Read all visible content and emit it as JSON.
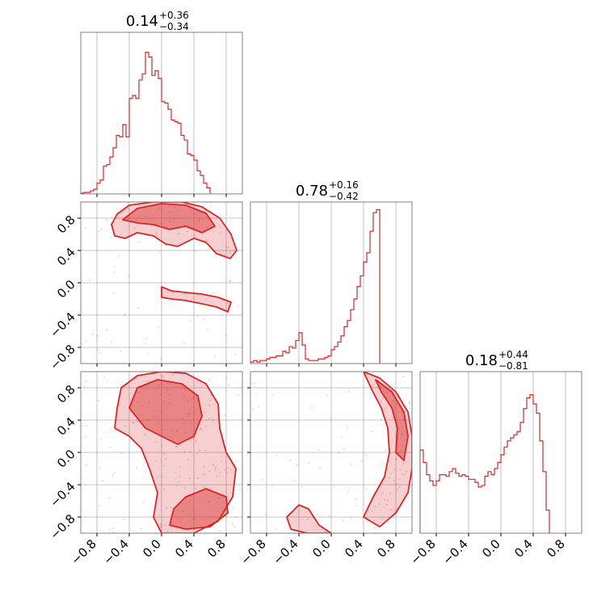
{
  "chart_data": {
    "type": "corner",
    "color": "#d62728",
    "grid": true,
    "axis_range": [
      -1.0,
      1.0
    ],
    "tick_labels": [
      "−0.8",
      "−0.4",
      "0.0",
      "0.4",
      "0.8"
    ],
    "tick_values": [
      -0.8,
      -0.4,
      0.0,
      0.4,
      0.8
    ],
    "titles": [
      {
        "median": "0.14",
        "upper": "+0.36",
        "lower": "−0.34"
      },
      {
        "median": "0.78",
        "upper": "+0.16",
        "lower": "−0.42"
      },
      {
        "median": "0.18",
        "upper": "+0.44",
        "lower": "−0.81"
      }
    ],
    "histograms": [
      {
        "param": 0,
        "type": "step",
        "bins_lo": -1.0,
        "bin_width": 0.04,
        "max_count": 1.0,
        "counts": [
          0.005,
          0.01,
          0.01,
          0.02,
          0.03,
          0.07,
          0.09,
          0.18,
          0.19,
          0.24,
          0.3,
          0.38,
          0.37,
          0.45,
          0.37,
          0.62,
          0.64,
          0.62,
          0.74,
          0.78,
          0.92,
          0.89,
          0.77,
          0.8,
          0.75,
          0.6,
          0.59,
          0.55,
          0.48,
          0.47,
          0.46,
          0.38,
          0.35,
          0.26,
          0.25,
          0.22,
          0.15,
          0.12,
          0.07,
          0.04
        ]
      },
      {
        "param": 1,
        "type": "step",
        "bins_lo": -1.0,
        "bin_width": 0.04,
        "max_count": 1.0,
        "counts": [
          0.01,
          0.02,
          0.01,
          0.02,
          0.02,
          0.03,
          0.04,
          0.04,
          0.05,
          0.05,
          0.08,
          0.07,
          0.11,
          0.1,
          0.15,
          0.2,
          0.12,
          0.03,
          0.02,
          0.02,
          0.02,
          0.03,
          0.03,
          0.04,
          0.05,
          0.09,
          0.11,
          0.14,
          0.18,
          0.24,
          0.28,
          0.35,
          0.42,
          0.5,
          0.57,
          0.66,
          0.72,
          0.86,
          0.98,
          1.0
        ]
      },
      {
        "param": 2,
        "type": "step",
        "bins_lo": -1.0,
        "bin_width": 0.04,
        "max_count": 1.0,
        "counts": [
          0.54,
          0.46,
          0.38,
          0.34,
          0.31,
          0.34,
          0.38,
          0.38,
          0.37,
          0.4,
          0.42,
          0.39,
          0.37,
          0.38,
          0.37,
          0.35,
          0.35,
          0.33,
          0.3,
          0.31,
          0.37,
          0.4,
          0.38,
          0.42,
          0.46,
          0.51,
          0.56,
          0.6,
          0.62,
          0.64,
          0.66,
          0.72,
          0.81,
          0.88,
          0.9,
          0.84,
          0.78,
          0.6,
          0.4,
          0.15
        ]
      }
    ],
    "contour_panels": [
      {
        "x_param": 0,
        "y_param": 1,
        "regions": [
          {
            "level": "outer",
            "polygon": [
              [
                -0.58,
                0.58
              ],
              [
                -0.62,
                0.72
              ],
              [
                -0.55,
                0.85
              ],
              [
                -0.4,
                0.96
              ],
              [
                -0.1,
                1.0
              ],
              [
                0.25,
                1.0
              ],
              [
                0.5,
                0.94
              ],
              [
                0.72,
                0.8
              ],
              [
                0.86,
                0.6
              ],
              [
                0.93,
                0.4
              ],
              [
                0.85,
                0.3
              ],
              [
                0.68,
                0.36
              ],
              [
                0.55,
                0.5
              ],
              [
                0.4,
                0.55
              ],
              [
                0.2,
                0.45
              ],
              [
                0.05,
                0.48
              ],
              [
                -0.1,
                0.58
              ],
              [
                -0.3,
                0.62
              ],
              [
                -0.45,
                0.55
              ]
            ]
          },
          {
            "level": "inner",
            "polygon": [
              [
                -0.48,
                0.78
              ],
              [
                -0.3,
                0.92
              ],
              [
                0.0,
                0.98
              ],
              [
                0.3,
                0.96
              ],
              [
                0.55,
                0.86
              ],
              [
                0.66,
                0.7
              ],
              [
                0.5,
                0.62
              ],
              [
                0.3,
                0.7
              ],
              [
                0.1,
                0.66
              ],
              [
                -0.1,
                0.72
              ],
              [
                -0.3,
                0.74
              ]
            ]
          },
          {
            "level": "outer",
            "polygon": [
              [
                0.0,
                -0.05
              ],
              [
                0.12,
                -0.1
              ],
              [
                0.3,
                -0.12
              ],
              [
                0.5,
                -0.14
              ],
              [
                0.7,
                -0.18
              ],
              [
                0.86,
                -0.24
              ],
              [
                0.82,
                -0.36
              ],
              [
                0.68,
                -0.3
              ],
              [
                0.5,
                -0.26
              ],
              [
                0.3,
                -0.22
              ],
              [
                0.12,
                -0.2
              ],
              [
                0.0,
                -0.18
              ]
            ]
          }
        ]
      },
      {
        "x_param": 0,
        "y_param": 2,
        "regions": [
          {
            "level": "outer",
            "polygon": [
              [
                -0.55,
                0.55
              ],
              [
                -0.5,
                0.8
              ],
              [
                -0.3,
                0.95
              ],
              [
                0.0,
                1.0
              ],
              [
                0.3,
                0.98
              ],
              [
                0.55,
                0.85
              ],
              [
                0.7,
                0.6
              ],
              [
                0.72,
                0.3
              ],
              [
                0.8,
                0.0
              ],
              [
                0.92,
                -0.2
              ],
              [
                0.88,
                -0.55
              ],
              [
                0.7,
                -0.85
              ],
              [
                0.4,
                -1.0
              ],
              [
                0.0,
                -1.0
              ],
              [
                -0.1,
                -0.8
              ],
              [
                -0.05,
                -0.5
              ],
              [
                -0.15,
                -0.2
              ],
              [
                -0.25,
                0.05
              ],
              [
                -0.4,
                0.2
              ],
              [
                -0.58,
                0.3
              ]
            ]
          },
          {
            "level": "inner",
            "polygon": [
              [
                -0.4,
                0.55
              ],
              [
                -0.3,
                0.8
              ],
              [
                -0.05,
                0.9
              ],
              [
                0.25,
                0.85
              ],
              [
                0.45,
                0.7
              ],
              [
                0.5,
                0.45
              ],
              [
                0.4,
                0.2
              ],
              [
                0.2,
                0.1
              ],
              [
                0.0,
                0.2
              ],
              [
                -0.2,
                0.3
              ]
            ]
          },
          {
            "level": "inner",
            "polygon": [
              [
                0.3,
                -0.55
              ],
              [
                0.55,
                -0.45
              ],
              [
                0.8,
                -0.55
              ],
              [
                0.82,
                -0.75
              ],
              [
                0.6,
                -0.92
              ],
              [
                0.3,
                -0.95
              ],
              [
                0.1,
                -0.9
              ],
              [
                0.15,
                -0.7
              ]
            ]
          }
        ]
      },
      {
        "x_param": 1,
        "y_param": 2,
        "regions": [
          {
            "level": "outer",
            "polygon": [
              [
                0.4,
                1.0
              ],
              [
                0.6,
                0.92
              ],
              [
                0.8,
                0.75
              ],
              [
                0.95,
                0.5
              ],
              [
                1.0,
                0.2
              ],
              [
                1.0,
                -0.2
              ],
              [
                0.95,
                -0.5
              ],
              [
                0.8,
                -0.75
              ],
              [
                0.6,
                -0.92
              ],
              [
                0.4,
                -0.8
              ],
              [
                0.52,
                -0.55
              ],
              [
                0.66,
                -0.3
              ],
              [
                0.72,
                0.0
              ],
              [
                0.7,
                0.3
              ],
              [
                0.62,
                0.55
              ],
              [
                0.5,
                0.78
              ]
            ]
          },
          {
            "level": "inner",
            "polygon": [
              [
                0.55,
                0.9
              ],
              [
                0.75,
                0.75
              ],
              [
                0.9,
                0.5
              ],
              [
                0.95,
                0.2
              ],
              [
                0.9,
                -0.1
              ],
              [
                0.8,
                0.0
              ],
              [
                0.82,
                0.3
              ],
              [
                0.75,
                0.55
              ],
              [
                0.62,
                0.75
              ]
            ]
          },
          {
            "level": "outer",
            "polygon": [
              [
                -0.55,
                -0.8
              ],
              [
                -0.4,
                -0.65
              ],
              [
                -0.28,
                -0.7
              ],
              [
                -0.15,
                -0.9
              ],
              [
                0.0,
                -1.0
              ],
              [
                -0.3,
                -1.0
              ],
              [
                -0.5,
                -0.95
              ]
            ]
          }
        ]
      }
    ]
  }
}
